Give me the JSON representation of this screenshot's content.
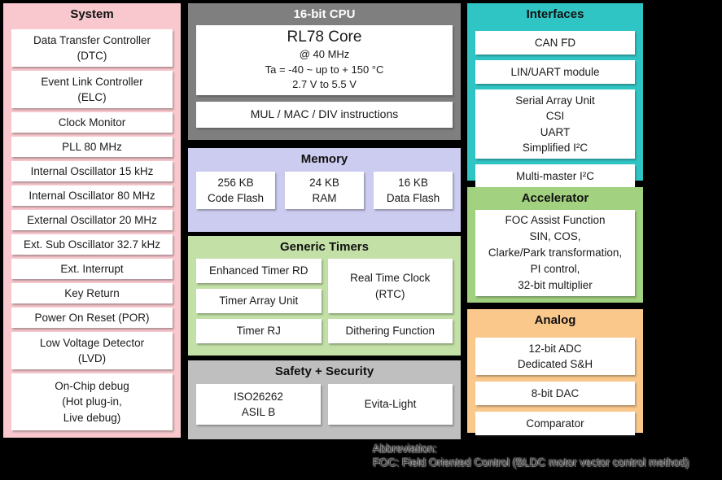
{
  "colors": {
    "canvas_bg": "#000000",
    "system_bg": "#f8c8ce",
    "cpu_bg": "#7f7f7f",
    "cpu_title_text": "#ffffff",
    "memory_bg": "#ccccf0",
    "generic_timers_bg": "#c3e0a6",
    "safety_bg": "#bfbfbf",
    "interfaces_bg": "#30c5c5",
    "accelerator_bg": "#a2d17f",
    "analog_bg": "#fbc88c",
    "box_bg": "#ffffff",
    "text": "#1a1a1a"
  },
  "system": {
    "title": "System",
    "items": [
      "Data Transfer Controller\n(DTC)",
      "Event Link Controller\n(ELC)",
      "Clock Monitor",
      "PLL 80 MHz",
      "Internal Oscillator 15 kHz",
      "Internal Oscillator 80 MHz",
      "External Oscillator 20 MHz",
      "Ext. Sub Oscillator 32.7 kHz",
      "Ext. Interrupt",
      "Key Return",
      "Power On Reset (POR)",
      "Low Voltage Detector\n(LVD)",
      "On-Chip debug\n(Hot plug-in,\nLive debug)"
    ]
  },
  "cpu": {
    "title": "16-bit CPU",
    "core_name": "RL78 Core",
    "core_details": "@ 40 MHz\nTa = -40 ~ up to + 150 °C\n2.7 V to 5.5 V",
    "instructions": "MUL / MAC / DIV instructions"
  },
  "memory": {
    "title": "Memory",
    "items": [
      "256 KB\nCode Flash",
      "24 KB\nRAM",
      "16 KB\nData Flash"
    ]
  },
  "generic_timers": {
    "title": "Generic Timers",
    "left_items": [
      "Enhanced Timer RD",
      "Timer Array Unit",
      "Timer RJ"
    ],
    "rtc": "Real Time Clock\n(RTC)",
    "dithering": "Dithering Function"
  },
  "safety_security": {
    "title": "Safety + Security",
    "items": [
      "ISO26262\nASIL B",
      "Evita-Light"
    ]
  },
  "interfaces": {
    "title": "Interfaces",
    "items": [
      "CAN FD",
      "LIN/UART module",
      "Serial Array Unit\nCSI\nUART\nSimplified I²C",
      "Multi-master I²C"
    ]
  },
  "accelerator": {
    "title": "Accelerator",
    "item": "FOC Assist Function\nSIN, COS,\nClarke/Park transformation,\nPI control,\n32-bit multiplier"
  },
  "analog": {
    "title": "Analog",
    "items": [
      "12-bit ADC\nDedicated S&H",
      "8-bit DAC",
      "Comparator"
    ]
  },
  "footer": {
    "label": "Abbreviation:",
    "text": "FOC: Field Oriented Control (BLDC motor vector control method)"
  }
}
